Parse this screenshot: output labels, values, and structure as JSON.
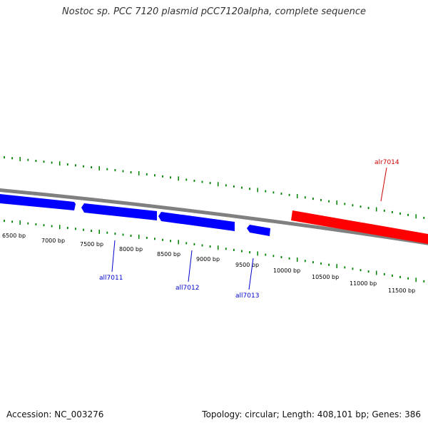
{
  "title": "Nostoc sp. PCC 7120 plasmid pCC7120alpha, complete sequence",
  "footer": {
    "accession": "Accession: NC_003276",
    "summary": "Topology: circular; Length: 408,101 bp; Genes: 386"
  },
  "colors": {
    "backbone": "#808080",
    "minus_strand_gene": "#0000ff",
    "plus_strand_gene": "#ff0000",
    "tick": "#008000",
    "minus_label": "#0000cc",
    "plus_label": "#cc0000"
  },
  "ticks": [
    {
      "label": "6500 bp"
    },
    {
      "label": "7000 bp"
    },
    {
      "label": "7500 bp"
    },
    {
      "label": "8000 bp"
    },
    {
      "label": "8500 bp"
    },
    {
      "label": "9000 bp"
    },
    {
      "label": "9500 bp"
    },
    {
      "label": "10000 bp"
    },
    {
      "label": "10500 bp"
    },
    {
      "label": "11000 bp"
    },
    {
      "label": "11500 bp"
    }
  ],
  "genes": [
    {
      "name": "",
      "strand": "minus"
    },
    {
      "name": "all7011",
      "strand": "minus"
    },
    {
      "name": "all7012",
      "strand": "minus"
    },
    {
      "name": "all7013",
      "strand": "minus"
    },
    {
      "name": "alr7014",
      "strand": "plus"
    }
  ]
}
